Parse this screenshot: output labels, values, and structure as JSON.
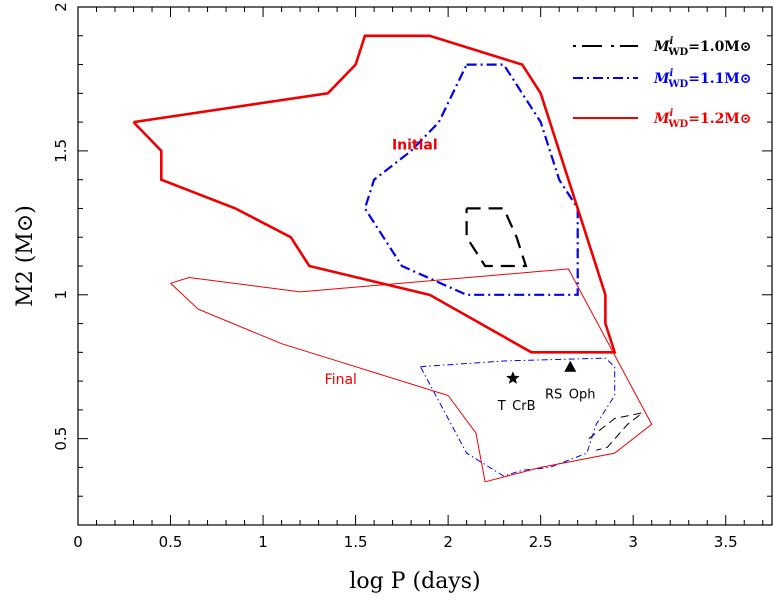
{
  "chart_data": {
    "type": "line",
    "xlabel": "log P (days)",
    "ylabel": "M2 (M⊙)",
    "xlim": [
      0,
      3.75
    ],
    "ylim": [
      0.2,
      2.0
    ],
    "x_ticks": [
      "0",
      "0.5",
      "1",
      "1.5",
      "2",
      "2.5",
      "3",
      "3.5"
    ],
    "x_tick_values": [
      0,
      0.5,
      1,
      1.5,
      2,
      2.5,
      3,
      3.5
    ],
    "y_ticks": [
      "0.5",
      "1",
      "1.5",
      "2"
    ],
    "y_tick_values": [
      0.5,
      1,
      1.5,
      2
    ],
    "legend_position": "top-right",
    "series": [
      {
        "name": "M_WD^i=1.0M⊙",
        "legend_main": "M",
        "legend_sup": "i",
        "legend_sub": "WD",
        "legend_rest": "=1.0M⊙",
        "color": "#000000",
        "style": "dashed",
        "initial": [
          [
            2.1,
            1.3
          ],
          [
            2.3,
            1.3
          ],
          [
            2.37,
            1.2
          ],
          [
            2.42,
            1.1
          ],
          [
            2.2,
            1.1
          ],
          [
            2.1,
            1.2
          ],
          [
            2.1,
            1.3
          ]
        ],
        "final": [
          [
            2.76,
            0.5
          ],
          [
            2.9,
            0.57
          ],
          [
            3.05,
            0.59
          ],
          [
            2.97,
            0.55
          ],
          [
            2.86,
            0.47
          ],
          [
            2.8,
            0.46
          ]
        ]
      },
      {
        "name": "M_WD^i=1.1M⊙",
        "legend_main": "M",
        "legend_sup": "i",
        "legend_sub": "WD",
        "legend_rest": "=1.1M⊙",
        "color": "#0000ee",
        "style": "dashdot",
        "initial": [
          [
            2.1,
            1.8
          ],
          [
            2.3,
            1.8
          ],
          [
            2.5,
            1.6
          ],
          [
            2.6,
            1.4
          ],
          [
            2.7,
            1.3
          ],
          [
            2.7,
            1.0
          ],
          [
            2.1,
            1.0
          ],
          [
            1.75,
            1.1
          ],
          [
            1.55,
            1.3
          ],
          [
            1.6,
            1.4
          ],
          [
            1.8,
            1.5
          ],
          [
            1.95,
            1.6
          ],
          [
            2.1,
            1.8
          ]
        ],
        "final": [
          [
            1.85,
            0.75
          ],
          [
            2.3,
            0.77
          ],
          [
            2.85,
            0.78
          ],
          [
            2.9,
            0.75
          ],
          [
            2.9,
            0.65
          ],
          [
            2.8,
            0.55
          ],
          [
            2.75,
            0.45
          ],
          [
            2.55,
            0.4
          ],
          [
            2.4,
            0.39
          ],
          [
            2.3,
            0.37
          ],
          [
            2.1,
            0.45
          ],
          [
            1.85,
            0.75
          ]
        ]
      },
      {
        "name": "M_WD^i=1.2M⊙",
        "legend_main": "M",
        "legend_sup": "i",
        "legend_sub": "WD",
        "legend_rest": "=1.2M⊙",
        "color": "#ee0000",
        "style": "solid",
        "initial": [
          [
            0.3,
            1.6
          ],
          [
            1.35,
            1.7
          ],
          [
            1.5,
            1.8
          ],
          [
            1.55,
            1.9
          ],
          [
            1.9,
            1.9
          ],
          [
            2.4,
            1.8
          ],
          [
            2.5,
            1.7
          ],
          [
            2.85,
            1.0
          ],
          [
            2.85,
            0.9
          ],
          [
            2.9,
            0.8
          ],
          [
            2.45,
            0.8
          ],
          [
            1.9,
            1.0
          ],
          [
            1.25,
            1.1
          ],
          [
            1.15,
            1.2
          ],
          [
            0.85,
            1.3
          ],
          [
            0.45,
            1.4
          ],
          [
            0.45,
            1.5
          ],
          [
            0.3,
            1.6
          ]
        ],
        "final": [
          [
            0.5,
            1.04
          ],
          [
            0.6,
            1.06
          ],
          [
            1.2,
            1.01
          ],
          [
            2.65,
            1.09
          ],
          [
            3.1,
            0.55
          ],
          [
            2.9,
            0.45
          ],
          [
            2.5,
            0.4
          ],
          [
            2.2,
            0.35
          ],
          [
            2.15,
            0.52
          ],
          [
            2.0,
            0.65
          ],
          [
            1.5,
            0.75
          ],
          [
            1.1,
            0.83
          ],
          [
            0.65,
            0.95
          ],
          [
            0.5,
            1.04
          ]
        ]
      }
    ],
    "annotations": [
      {
        "text": "Initial",
        "x": 1.82,
        "y": 1.505,
        "color": "#ee0000",
        "weight": "bold"
      },
      {
        "text": "Final",
        "x": 1.42,
        "y": 0.69,
        "color": "#ee0000",
        "weight": "normal"
      }
    ],
    "stars": [
      {
        "name": "T CrB",
        "symbol": "star",
        "x": 2.35,
        "y": 0.71,
        "label_x": 2.37,
        "label_y": 0.6
      },
      {
        "name": "RS Oph",
        "symbol": "triangle",
        "x": 2.66,
        "y": 0.75,
        "label_x": 2.66,
        "label_y": 0.64
      }
    ]
  }
}
